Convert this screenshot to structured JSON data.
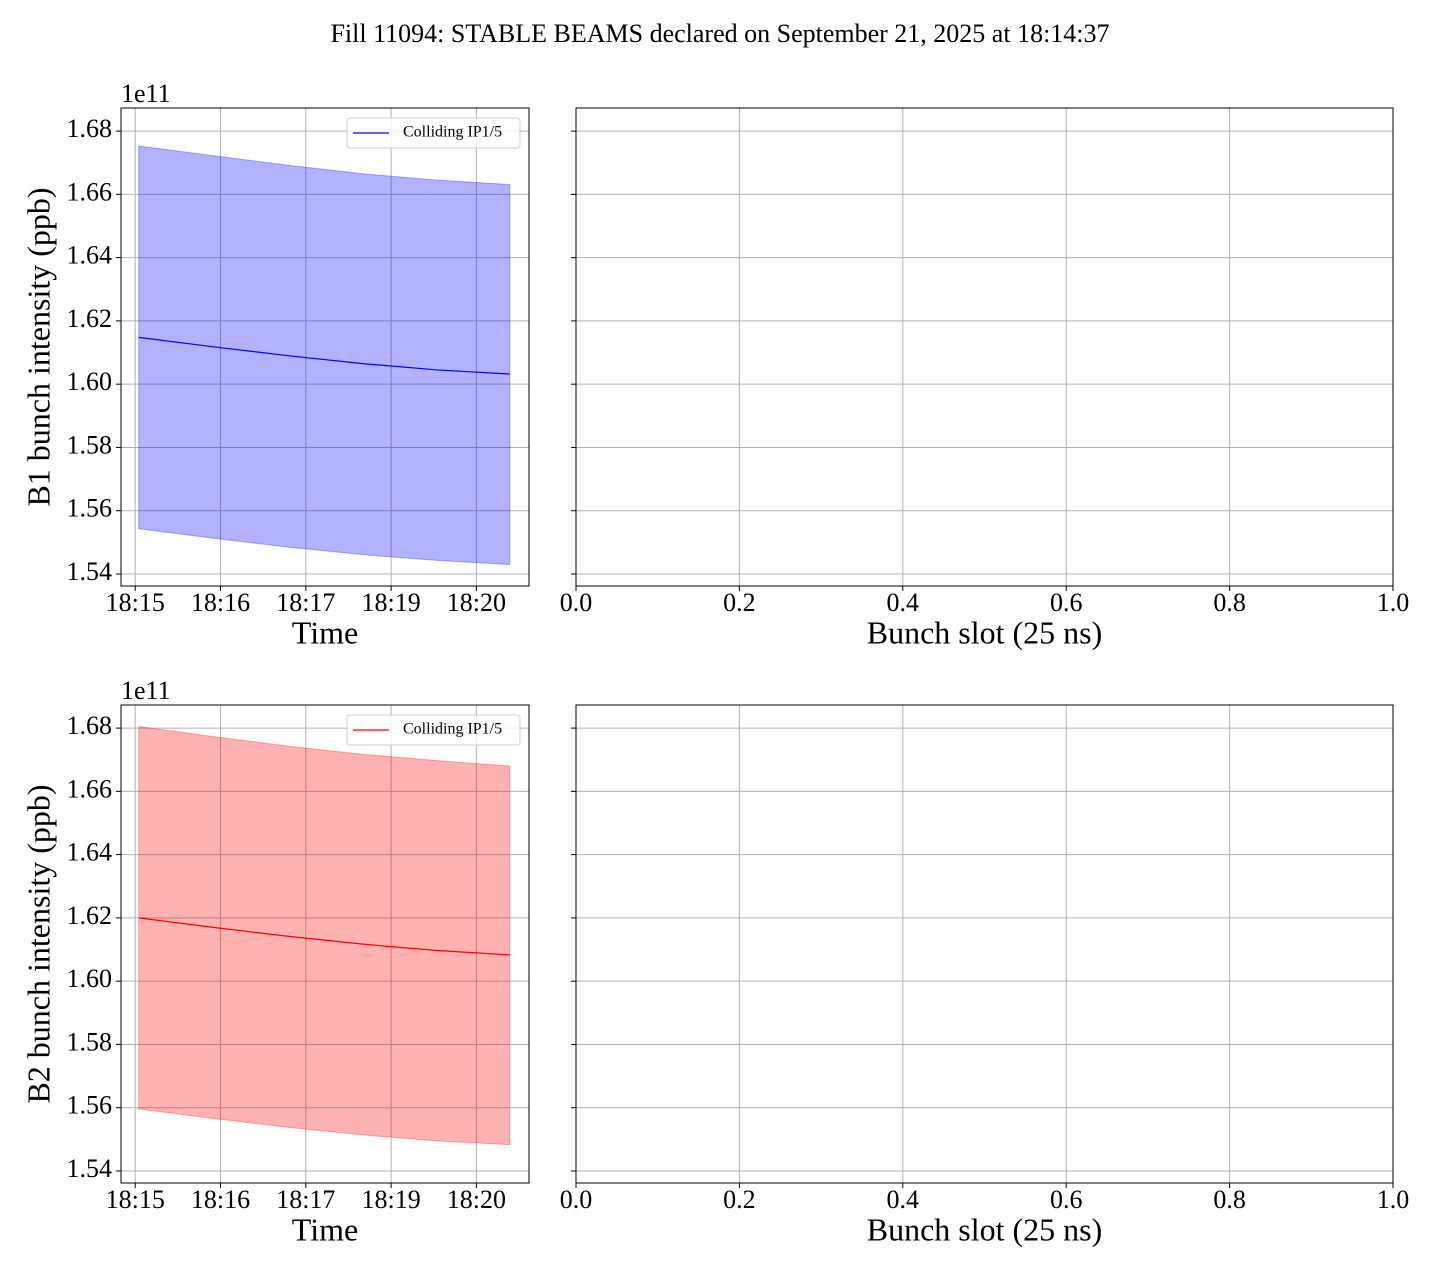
{
  "title": "Fill 11094: STABLE BEAMS declared on September 21, 2025 at 18:14:37",
  "chart_data": [
    {
      "type": "line",
      "xlabel": "Time",
      "ylabel": "B1 bunch intensity (ppb)",
      "offset_label": "1e11",
      "x": [
        1095.05,
        1096.1,
        1097.15,
        1098.2,
        1099.25,
        1100.27
      ],
      "series": [
        {
          "name": "Colliding IP1/5",
          "color": "#0000ff",
          "values": [
            1.6148,
            1.6118,
            1.609,
            1.6065,
            1.6045,
            1.6032
          ],
          "upper": [
            1.6753,
            1.6722,
            1.6692,
            1.6665,
            1.6645,
            1.6631
          ],
          "lower": [
            1.5543,
            1.5513,
            1.5485,
            1.5461,
            1.5443,
            1.543
          ]
        }
      ],
      "xlim": [
        1094.8,
        1100.54
      ],
      "xticks": [
        {
          "value": 1095,
          "label": "18:15"
        },
        {
          "value": 1096.2,
          "label": "18:16"
        },
        {
          "value": 1097.4,
          "label": "18:17"
        },
        {
          "value": 1098.6,
          "label": "18:19"
        },
        {
          "value": 1099.8,
          "label": "18:20"
        }
      ],
      "ylim": [
        1.5362,
        1.6873
      ],
      "yticks": [
        1.54,
        1.56,
        1.58,
        {
          "value": 1.6,
          "label": "1.60"
        },
        1.62,
        1.64,
        1.66,
        1.68
      ],
      "grid": true,
      "legend": "upper right"
    },
    {
      "type": "line",
      "xlabel": "Bunch slot (25 ns)",
      "sharey": true,
      "series": [],
      "xlim": [
        0,
        1
      ],
      "xticks": [
        {
          "value": 0,
          "label": "0.0"
        },
        0.2,
        0.4,
        0.6,
        0.8,
        {
          "value": 1,
          "label": "1.0"
        }
      ],
      "grid": true
    },
    {
      "type": "line",
      "xlabel": "Time",
      "ylabel": "B2 bunch intensity (ppb)",
      "offset_label": "1e11",
      "x": [
        1095.05,
        1096.1,
        1097.15,
        1098.2,
        1099.25,
        1100.27
      ],
      "series": [
        {
          "name": "Colliding IP1/5",
          "color": "#ff0000",
          "values": [
            1.62,
            1.617,
            1.6142,
            1.6117,
            1.6097,
            1.6083
          ],
          "upper": [
            1.6805,
            1.6773,
            1.6743,
            1.6717,
            1.6697,
            1.668
          ],
          "lower": [
            1.5596,
            1.5566,
            1.5538,
            1.5514,
            1.5495,
            1.5483
          ]
        }
      ],
      "xlim": [
        1094.8,
        1100.54
      ],
      "xticks": [
        {
          "value": 1095,
          "label": "18:15"
        },
        {
          "value": 1096.2,
          "label": "18:16"
        },
        {
          "value": 1097.4,
          "label": "18:17"
        },
        {
          "value": 1098.6,
          "label": "18:19"
        },
        {
          "value": 1099.8,
          "label": "18:20"
        }
      ],
      "ylim": [
        1.5362,
        1.6873
      ],
      "yticks": [
        1.54,
        1.56,
        1.58,
        {
          "value": 1.6,
          "label": "1.60"
        },
        1.62,
        1.64,
        1.66,
        1.68
      ],
      "grid": true,
      "legend": "upper right"
    },
    {
      "type": "line",
      "xlabel": "Bunch slot (25 ns)",
      "sharey": true,
      "series": [],
      "xlim": [
        0,
        1
      ],
      "xticks": [
        {
          "value": 0,
          "label": "0.0"
        },
        0.2,
        0.4,
        0.6,
        0.8,
        {
          "value": 1,
          "label": "1.0"
        }
      ],
      "grid": true
    }
  ]
}
